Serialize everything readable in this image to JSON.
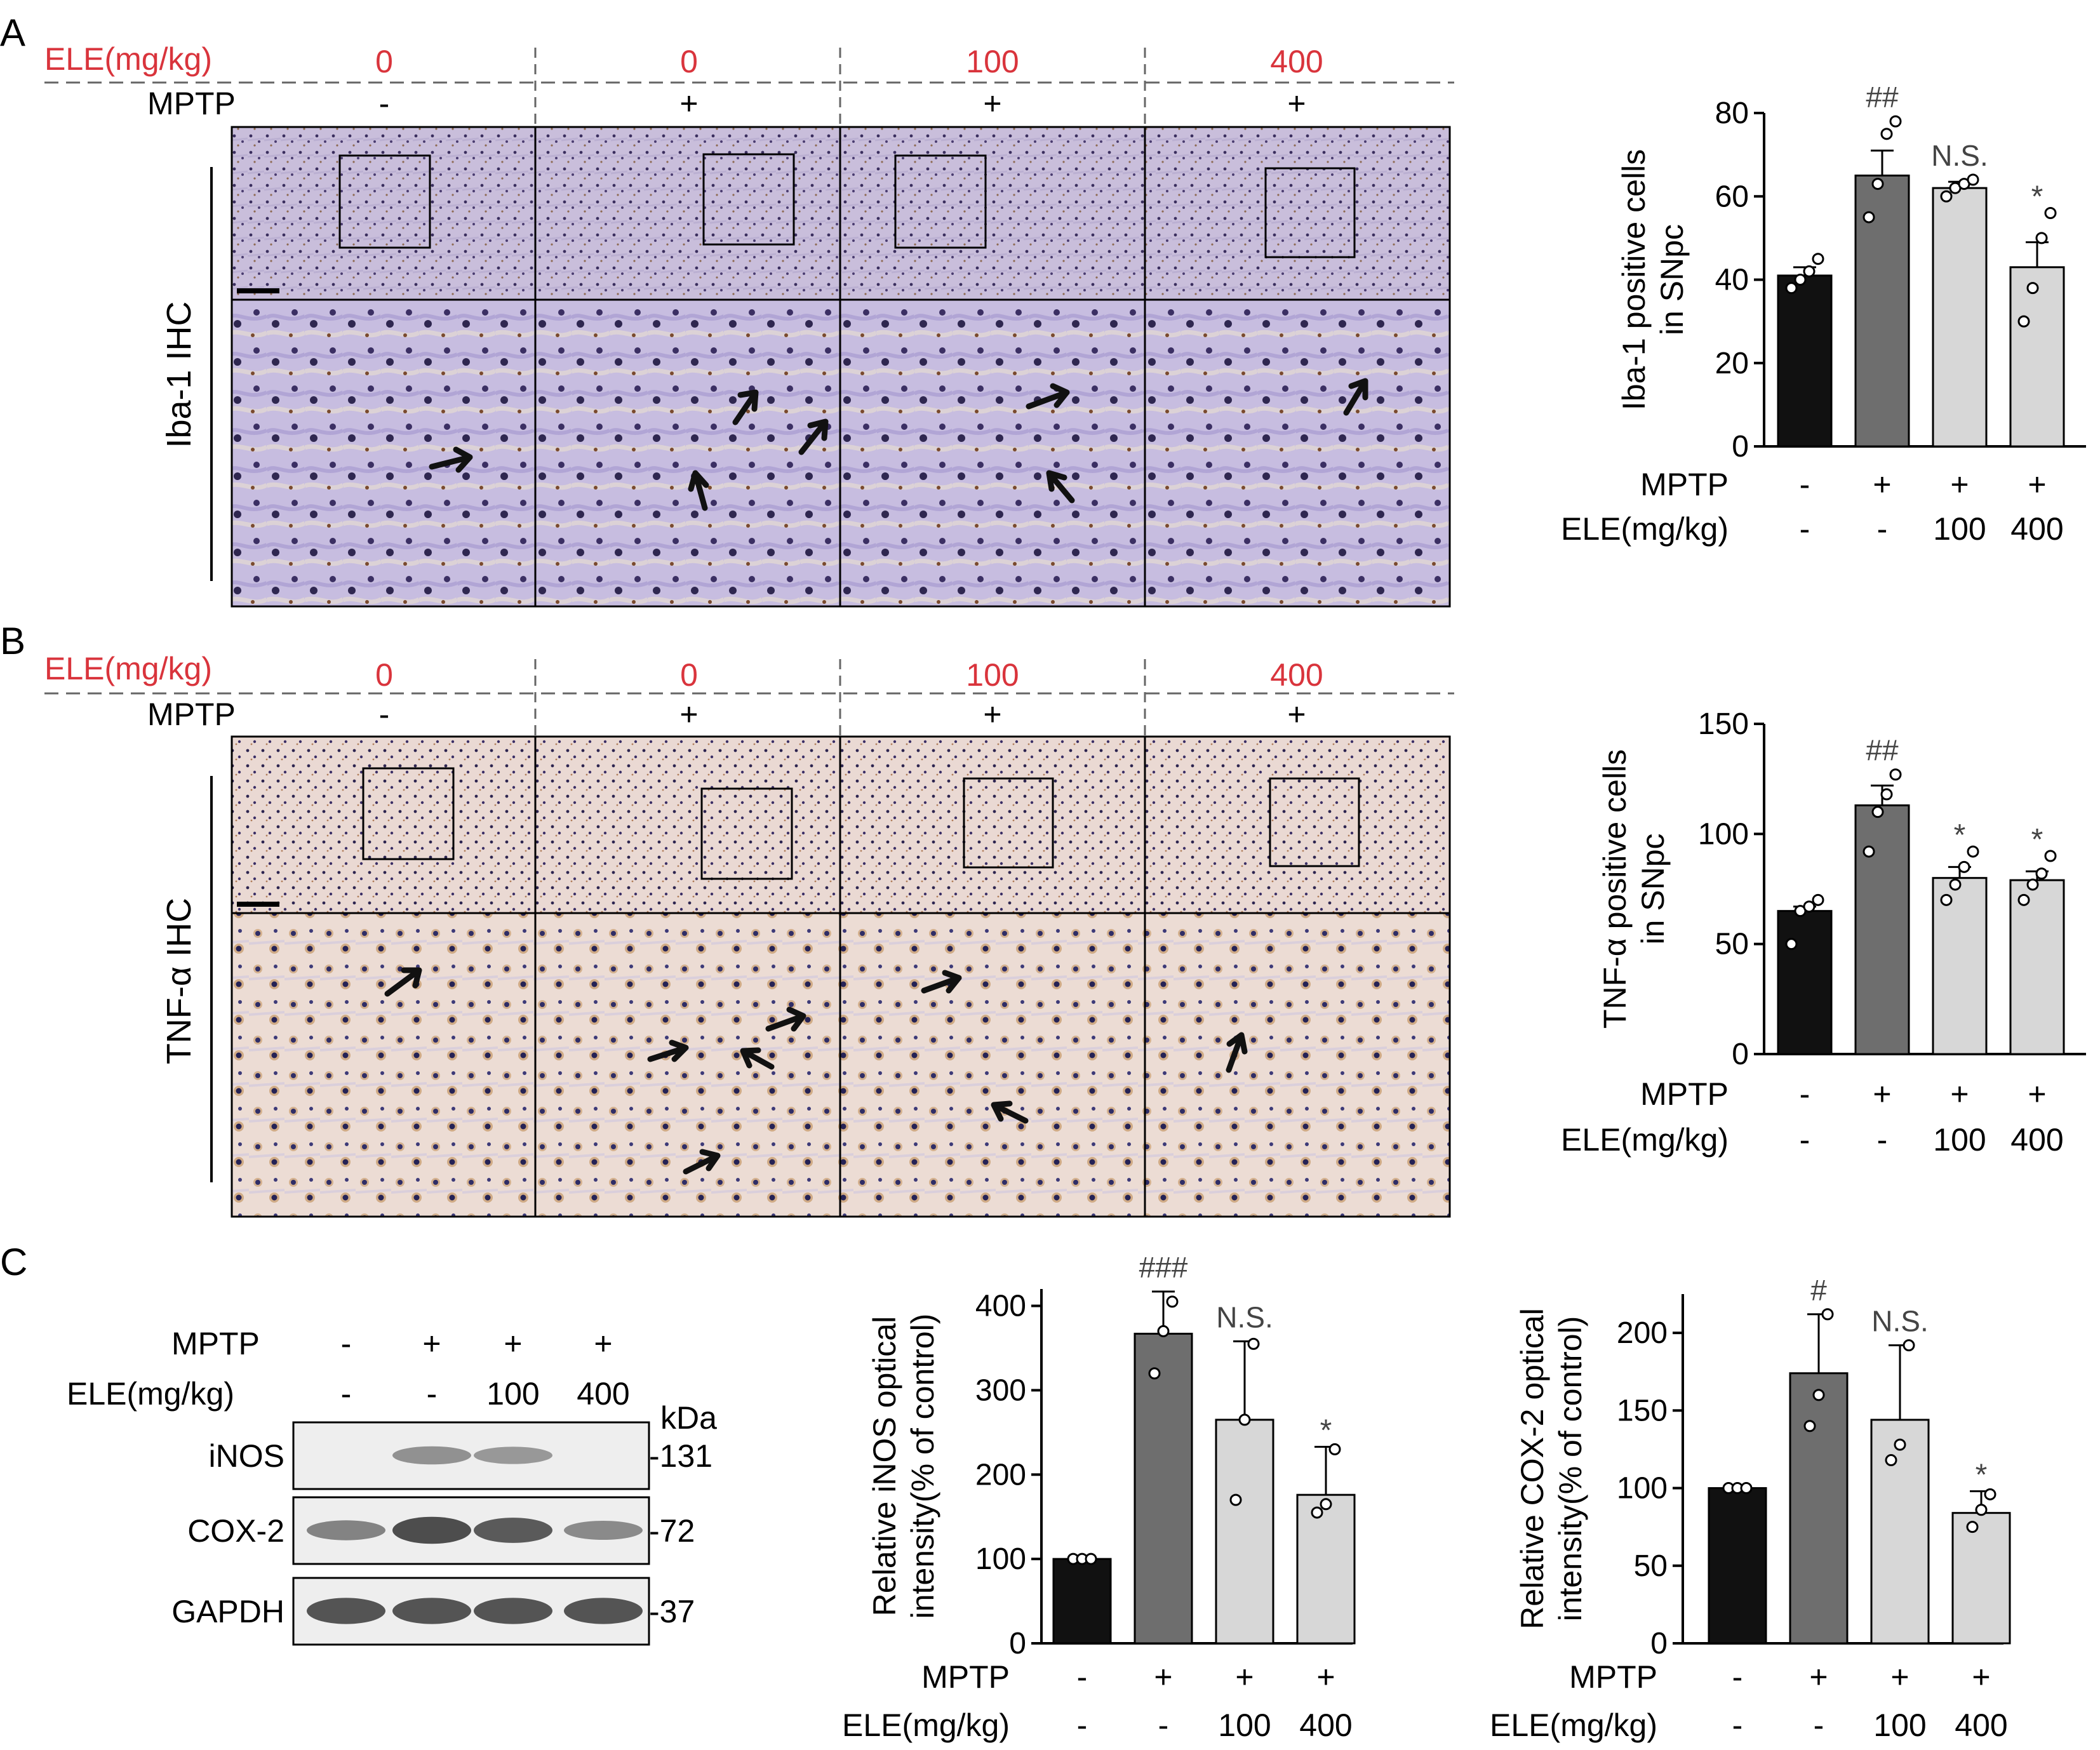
{
  "panels": {
    "A": {
      "letter": "A",
      "header": {
        "ele_label": "ELE(mg/kg)",
        "ele_values": [
          "0",
          "0",
          "100",
          "400"
        ],
        "mptp_label": "MPTP",
        "mptp_values": [
          "-",
          "+",
          "+",
          "+"
        ]
      },
      "stain_label": "Iba-1 IHC"
    },
    "B": {
      "letter": "B",
      "header": {
        "ele_label": "ELE(mg/kg)",
        "ele_values": [
          "0",
          "0",
          "100",
          "400"
        ],
        "mptp_label": "MPTP",
        "mptp_values": [
          "-",
          "+",
          "+",
          "+"
        ]
      },
      "stain_label": "TNF-α IHC"
    },
    "C": {
      "letter": "C",
      "blot": {
        "mptp_label": "MPTP",
        "mptp_values": [
          "-",
          "+",
          "+",
          "+"
        ],
        "ele_label": "ELE(mg/kg)",
        "ele_values": [
          "-",
          "-",
          "100",
          "400"
        ],
        "kda_label": "kDa",
        "bands": [
          {
            "name": "iNOS",
            "kda": "131",
            "intensity": [
              0.0,
              0.45,
              0.4,
              0.0
            ]
          },
          {
            "name": "COX-2",
            "kda": "72",
            "intensity": [
              0.55,
              0.95,
              0.85,
              0.5
            ]
          },
          {
            "name": "GAPDH",
            "kda": "37",
            "intensity": [
              0.9,
              0.9,
              0.9,
              0.9
            ]
          }
        ]
      }
    }
  },
  "colors": {
    "ele_red": "#d9343c",
    "bar_control": "#111111",
    "bar_mptp": "#6e6e6e",
    "bar_ele": "#d7d7d7"
  },
  "chart_data": [
    {
      "type": "bar",
      "panel": "A",
      "ylabel_lines": [
        "Iba-1 positive cells",
        "in SNpc"
      ],
      "ylim": [
        0,
        80
      ],
      "yticks": [
        0,
        20,
        40,
        60,
        80
      ],
      "row_labels": [
        "MPTP",
        "ELE(mg/kg)"
      ],
      "categories_mptp": [
        "-",
        "+",
        "+",
        "+"
      ],
      "categories_ele": [
        "-",
        "-",
        "100",
        "400"
      ],
      "values": [
        41,
        65,
        62,
        43
      ],
      "errors": [
        2,
        6,
        1.5,
        6
      ],
      "points": [
        [
          38,
          40,
          42,
          45
        ],
        [
          55,
          63,
          75,
          78
        ],
        [
          60,
          62,
          63,
          64
        ],
        [
          30,
          38,
          50,
          56
        ]
      ],
      "annotations": [
        "",
        "##",
        "N.S.",
        "*"
      ]
    },
    {
      "type": "bar",
      "panel": "B",
      "ylabel_lines": [
        "TNF-α positive cells",
        "in SNpc"
      ],
      "ylim": [
        0,
        150
      ],
      "yticks": [
        0,
        50,
        100,
        150
      ],
      "row_labels": [
        "MPTP",
        "ELE(mg/kg)"
      ],
      "categories_mptp": [
        "-",
        "+",
        "+",
        "+"
      ],
      "categories_ele": [
        "-",
        "-",
        "100",
        "400"
      ],
      "values": [
        65,
        113,
        80,
        79
      ],
      "errors": [
        2,
        9,
        5,
        4
      ],
      "points": [
        [
          50,
          65,
          67,
          70
        ],
        [
          92,
          110,
          118,
          127
        ],
        [
          70,
          77,
          85,
          92
        ],
        [
          70,
          77,
          82,
          90
        ]
      ],
      "annotations": [
        "",
        "##",
        "*",
        "*"
      ]
    },
    {
      "type": "bar",
      "panel": "C",
      "ylabel_lines": [
        "Relative iNOS optical",
        "intensity(% of control)"
      ],
      "ylim": [
        0,
        420
      ],
      "yticks": [
        0,
        100,
        200,
        300,
        400
      ],
      "row_labels": [
        "MPTP",
        "ELE(mg/kg)"
      ],
      "categories_mptp": [
        "-",
        "+",
        "+",
        "+"
      ],
      "categories_ele": [
        "-",
        "-",
        "100",
        "400"
      ],
      "values": [
        100,
        367,
        265,
        176
      ],
      "errors": [
        0,
        50,
        93,
        57
      ],
      "points": [
        [
          100,
          100,
          100
        ],
        [
          320,
          370,
          405
        ],
        [
          170,
          265,
          355
        ],
        [
          155,
          165,
          230
        ]
      ],
      "annotations": [
        "",
        "###",
        "N.S.",
        "*"
      ]
    },
    {
      "type": "bar",
      "panel": "C",
      "ylabel_lines": [
        "Relative COX-2 optical",
        "intensity(% of control)"
      ],
      "ylim": [
        0,
        225
      ],
      "yticks": [
        0,
        50,
        100,
        150,
        200
      ],
      "row_labels": [
        "MPTP",
        "ELE(mg/kg)"
      ],
      "categories_mptp": [
        "-",
        "+",
        "+",
        "+"
      ],
      "categories_ele": [
        "-",
        "-",
        "100",
        "400"
      ],
      "values": [
        100,
        174,
        144,
        84
      ],
      "errors": [
        0,
        38,
        48,
        14
      ],
      "points": [
        [
          100,
          100,
          100
        ],
        [
          140,
          160,
          212
        ],
        [
          118,
          128,
          192
        ],
        [
          75,
          86,
          96
        ]
      ],
      "annotations": [
        "",
        "#",
        "N.S.",
        "*"
      ]
    }
  ]
}
